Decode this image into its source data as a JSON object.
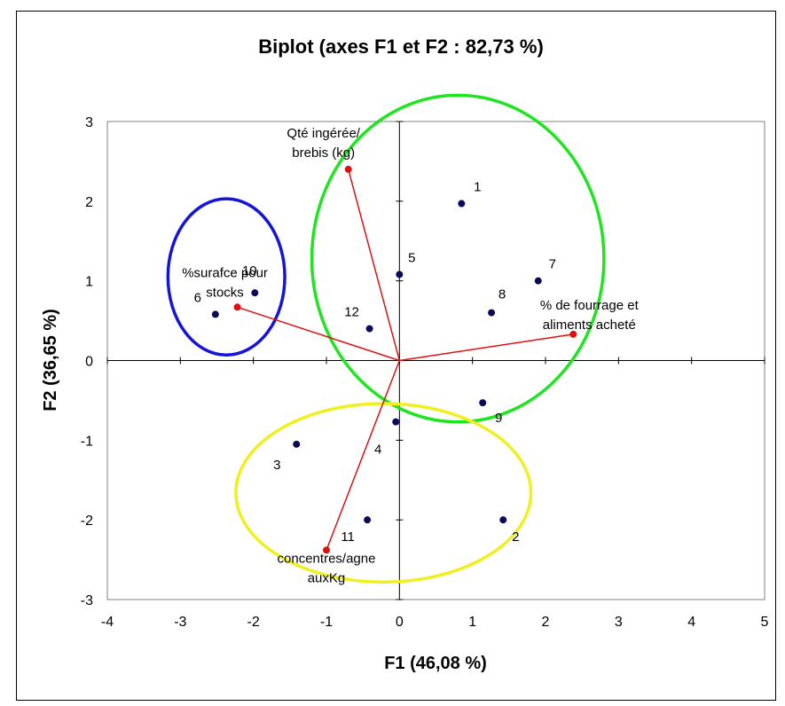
{
  "chart_data": {
    "type": "scatter",
    "title": "Biplot (axes F1 et F2 : 82,73 %)",
    "xlabel": "F1 (46,08 %)",
    "ylabel": "F2 (36,65 %)",
    "xlim": [
      -4,
      5
    ],
    "ylim": [
      -3,
      3
    ],
    "xticks": [
      "-4",
      "-3",
      "-2",
      "-1",
      "0",
      "1",
      "2",
      "3",
      "4",
      "5"
    ],
    "yticks": [
      "-3",
      "-2",
      "-1",
      "0",
      "1",
      "2",
      "3"
    ],
    "observations": [
      {
        "label": "1",
        "x": 0.85,
        "y": 1.97
      },
      {
        "label": "2",
        "x": 1.42,
        "y": -2.0
      },
      {
        "label": "3",
        "x": -1.41,
        "y": -1.05
      },
      {
        "label": "4",
        "x": -0.05,
        "y": -0.77
      },
      {
        "label": "5",
        "x": 0.0,
        "y": 1.08
      },
      {
        "label": "6",
        "x": -2.52,
        "y": 0.58
      },
      {
        "label": "7",
        "x": 1.9,
        "y": 1.0
      },
      {
        "label": "8",
        "x": 1.26,
        "y": 0.6
      },
      {
        "label": "9",
        "x": 1.14,
        "y": -0.53
      },
      {
        "label": "10",
        "x": -1.98,
        "y": 0.85
      },
      {
        "label": "11",
        "x": -0.44,
        "y": -2.0
      },
      {
        "label": "12",
        "x": -0.41,
        "y": 0.4
      }
    ],
    "variables": [
      {
        "label": "Qté ingérée/ brebis (kg)",
        "lines": [
          "Qté ingérée/",
          "brebis (kg)"
        ],
        "x": -0.7,
        "y": 2.4
      },
      {
        "label": "%surafce pour stocks",
        "lines": [
          "%surafce pour",
          "stocks"
        ],
        "x": -2.22,
        "y": 0.67
      },
      {
        "label": "% de fourrage et aliments acheté",
        "lines": [
          "% de fourrage et",
          "aliments acheté"
        ],
        "x": 2.38,
        "y": 0.33
      },
      {
        "label": "concentres/agne auxKg",
        "lines": [
          "concentres/agne",
          "auxKg"
        ],
        "x": -1.0,
        "y": -2.38
      }
    ],
    "groups": [
      {
        "color": "#1515d9",
        "cx": -2.37,
        "cy": 1.05,
        "rx": 0.8,
        "ry": 0.98
      },
      {
        "color": "#1ee61e",
        "cx": 0.8,
        "cy": 1.28,
        "rx": 2.0,
        "ry": 2.05
      },
      {
        "color": "#f0f01e",
        "cx": -0.22,
        "cy": -1.66,
        "rx": 2.02,
        "ry": 1.12
      }
    ],
    "colors": {
      "points": "#0a0a5a",
      "vectors": "#e01010"
    },
    "grid": false,
    "legend": "none"
  }
}
